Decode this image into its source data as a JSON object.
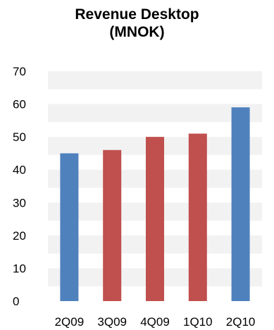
{
  "chart_data": {
    "type": "bar",
    "title_lines": [
      "Revenue Desktop",
      "(MNOK)"
    ],
    "categories": [
      "2Q09",
      "3Q09",
      "4Q09",
      "1Q10",
      "2Q10"
    ],
    "values": [
      45,
      46,
      50,
      51,
      59
    ],
    "bar_colors": [
      "#4f81bd",
      "#c0504d",
      "#c0504d",
      "#c0504d",
      "#4f81bd"
    ],
    "ylim": [
      0,
      70
    ],
    "yticks": [
      0,
      10,
      20,
      30,
      40,
      50,
      60,
      70
    ],
    "xlabel": "",
    "ylabel": "",
    "grid": "horizontal bands",
    "legend": "none"
  },
  "colors": {
    "band": "#f2f2f2",
    "background": "#ffffff",
    "highlight_bar": "#4f81bd",
    "regular_bar": "#c0504d"
  }
}
